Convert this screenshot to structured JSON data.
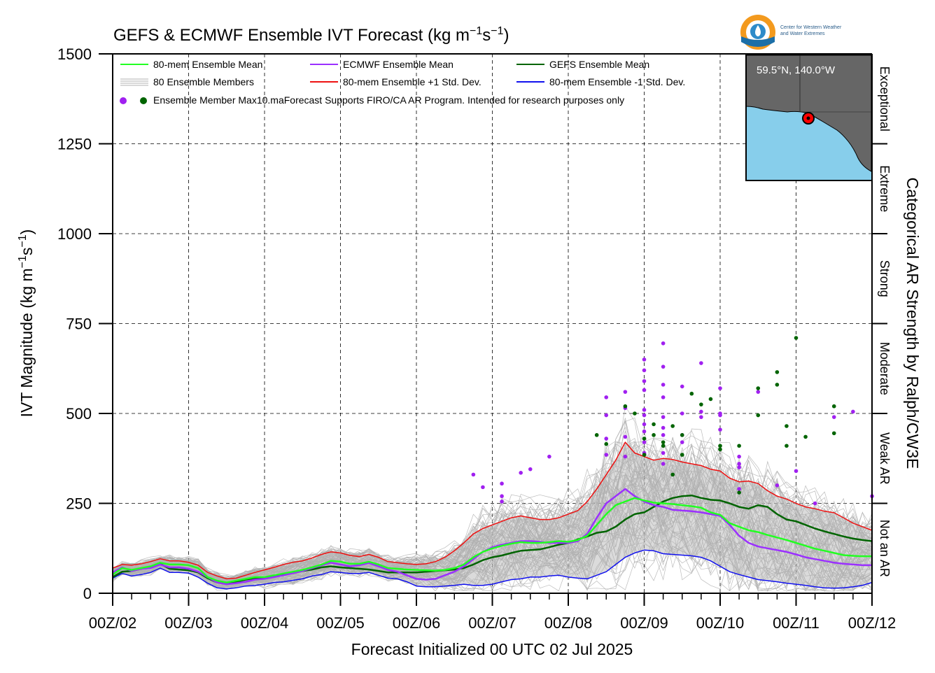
{
  "chart_data": {
    "type": "line",
    "title": "GEFS & ECMWF Ensemble IVT Forecast (kg m",
    "title_sup1": "−1",
    "title_mid": "s",
    "title_sup2": "−1",
    "title_end": ")",
    "ylabel": "IVT Magnitude (kg m",
    "ylabel_sup1": "−1",
    "ylabel_mid": "s",
    "ylabel_sup2": "−1",
    "ylabel_end": ")",
    "xlabel": "Forecast Initialized 00 UTC 02 Jul 2025",
    "right_label": "Categorical AR Strength by Ralph/CW3E",
    "ylim": [
      0,
      1500
    ],
    "xlim": [
      0,
      240
    ],
    "y_ticks": [
      0,
      250,
      500,
      750,
      1000,
      1250,
      1500
    ],
    "x_ticks": [
      {
        "value": 0,
        "label": "00Z/02"
      },
      {
        "value": 24,
        "label": "00Z/03"
      },
      {
        "value": 48,
        "label": "00Z/04"
      },
      {
        "value": 72,
        "label": "00Z/05"
      },
      {
        "value": 96,
        "label": "00Z/06"
      },
      {
        "value": 120,
        "label": "00Z/07"
      },
      {
        "value": 144,
        "label": "00Z/08"
      },
      {
        "value": 168,
        "label": "00Z/09"
      },
      {
        "value": 192,
        "label": "00Z/10"
      },
      {
        "value": 216,
        "label": "00Z/11"
      },
      {
        "value": 240,
        "label": "00Z/12"
      }
    ],
    "categories_right": [
      {
        "label": "Not an AR",
        "from": 0,
        "to": 250
      },
      {
        "label": "Weak AR",
        "from": 250,
        "to": 500
      },
      {
        "label": "Moderate",
        "from": 500,
        "to": 750
      },
      {
        "label": "Strong",
        "from": 750,
        "to": 1000
      },
      {
        "label": "Extreme",
        "from": 1000,
        "to": 1250
      },
      {
        "label": "Exceptional",
        "from": 1250,
        "to": 1500
      }
    ],
    "legend": {
      "mean80": "80-mem Ensemble Mean",
      "members": "80 Ensemble Members",
      "max": "Ensemble Member Max",
      "ecmwf_mean": "ECMWF Ensemble Mean",
      "plus1": "80-mem Ensemble +1 Std. Dev.",
      "gefs_mean": "GEFS Ensemble Mean",
      "minus1": "80-mem Ensemble -1 Std. Dev.",
      "note": "10.maForecast Supports FIRO/CA AR Program. Intended for research purposes only"
    },
    "colors": {
      "mean80": "#22ff22",
      "ecmwf_mean": "#9b30ff",
      "gefs_mean": "#006400",
      "plus1": "#ee1111",
      "minus1": "#1111ee",
      "members": "#b0b0b0",
      "spread": "#bdbdbd",
      "ecmwf_max": "#a020f0",
      "gefs_max": "#006400"
    },
    "x": [
      0,
      3,
      6,
      9,
      12,
      15,
      18,
      21,
      24,
      27,
      30,
      33,
      36,
      39,
      42,
      45,
      48,
      51,
      54,
      57,
      60,
      63,
      66,
      69,
      72,
      75,
      78,
      81,
      84,
      87,
      90,
      93,
      96,
      99,
      102,
      105,
      108,
      111,
      114,
      117,
      120,
      123,
      126,
      129,
      132,
      135,
      138,
      141,
      144,
      147,
      150,
      153,
      156,
      159,
      162,
      165,
      168,
      171,
      174,
      177,
      180,
      183,
      186,
      189,
      192,
      195,
      198,
      201,
      204,
      207,
      210,
      213,
      216,
      219,
      222,
      225,
      228,
      231,
      234,
      237,
      240
    ],
    "series": [
      {
        "name": "80-mem Ensemble Mean",
        "key": "mean80",
        "values": [
          52,
          70,
          65,
          70,
          75,
          85,
          80,
          80,
          78,
          70,
          45,
          35,
          30,
          35,
          40,
          45,
          45,
          50,
          55,
          60,
          65,
          72,
          80,
          90,
          88,
          82,
          82,
          88,
          80,
          70,
          68,
          66,
          65,
          64,
          63,
          65,
          70,
          80,
          100,
          115,
          125,
          132,
          138,
          142,
          140,
          140,
          142,
          145,
          143,
          148,
          160,
          190,
          220,
          245,
          255,
          265,
          258,
          252,
          250,
          248,
          245,
          242,
          238,
          225,
          218,
          195,
          185,
          175,
          170,
          162,
          155,
          148,
          140,
          132,
          124,
          118,
          112,
          106,
          104,
          103,
          103
        ]
      },
      {
        "name": "ECMWF Ensemble Mean",
        "key": "ecmwf_mean",
        "values": [
          58,
          72,
          62,
          68,
          70,
          80,
          72,
          72,
          68,
          60,
          45,
          30,
          25,
          28,
          32,
          38,
          40,
          45,
          50,
          56,
          62,
          70,
          78,
          85,
          80,
          75,
          78,
          84,
          75,
          65,
          60,
          50,
          40,
          38,
          40,
          50,
          60,
          75,
          95,
          115,
          128,
          135,
          140,
          145,
          145,
          143,
          140,
          140,
          140,
          145,
          165,
          210,
          250,
          270,
          290,
          270,
          255,
          245,
          240,
          232,
          230,
          228,
          225,
          220,
          215,
          190,
          160,
          140,
          130,
          125,
          120,
          115,
          108,
          100,
          95,
          90,
          85,
          82,
          80,
          78,
          78
        ]
      },
      {
        "name": "GEFS Ensemble Mean",
        "key": "gefs_mean",
        "values": [
          45,
          60,
          62,
          68,
          72,
          82,
          68,
          66,
          64,
          58,
          42,
          30,
          28,
          32,
          38,
          42,
          44,
          48,
          52,
          56,
          62,
          66,
          72,
          75,
          72,
          70,
          68,
          66,
          62,
          58,
          58,
          58,
          58,
          60,
          62,
          64,
          66,
          70,
          80,
          92,
          100,
          105,
          112,
          118,
          120,
          122,
          128,
          135,
          140,
          150,
          158,
          168,
          172,
          185,
          205,
          220,
          225,
          240,
          255,
          265,
          270,
          272,
          265,
          260,
          258,
          250,
          240,
          235,
          245,
          240,
          220,
          205,
          200,
          190,
          180,
          172,
          165,
          158,
          152,
          148,
          145
        ]
      },
      {
        "name": "80-mem Ensemble +1 Std. Dev.",
        "key": "plus1",
        "values": [
          70,
          80,
          78,
          82,
          88,
          96,
          90,
          90,
          86,
          78,
          58,
          48,
          40,
          42,
          50,
          58,
          65,
          72,
          80,
          86,
          90,
          98,
          108,
          115,
          112,
          105,
          102,
          108,
          100,
          88,
          85,
          82,
          80,
          82,
          88,
          100,
          118,
          140,
          165,
          180,
          190,
          200,
          210,
          215,
          210,
          205,
          205,
          210,
          220,
          230,
          255,
          290,
          330,
          370,
          420,
          390,
          380,
          370,
          375,
          372,
          365,
          360,
          355,
          345,
          340,
          320,
          310,
          312,
          305,
          285,
          270,
          262,
          250,
          240,
          235,
          228,
          224,
          210,
          195,
          185,
          175
        ]
      },
      {
        "name": "80-mem Ensemble -1 Std. Dev.",
        "key": "minus1",
        "values": [
          42,
          55,
          48,
          52,
          58,
          70,
          58,
          58,
          56,
          45,
          28,
          15,
          12,
          15,
          20,
          22,
          25,
          30,
          32,
          36,
          40,
          48,
          52,
          60,
          58,
          55,
          55,
          58,
          50,
          42,
          40,
          32,
          20,
          18,
          18,
          20,
          22,
          25,
          22,
          22,
          25,
          32,
          38,
          40,
          45,
          45,
          48,
          50,
          45,
          42,
          40,
          50,
          60,
          80,
          100,
          112,
          120,
          118,
          110,
          108,
          106,
          104,
          100,
          90,
          75,
          60,
          52,
          45,
          38,
          35,
          32,
          28,
          25,
          22,
          18,
          15,
          14,
          15,
          18,
          22,
          30
        ]
      }
    ],
    "ecmwf_max_points": [
      [
        114,
        330
      ],
      [
        117,
        295
      ],
      [
        123,
        305
      ],
      [
        123,
        270
      ],
      [
        123,
        255
      ],
      [
        129,
        335
      ],
      [
        132,
        345
      ],
      [
        138,
        380
      ],
      [
        156,
        385
      ],
      [
        156,
        430
      ],
      [
        156,
        495
      ],
      [
        156,
        545
      ],
      [
        162,
        380
      ],
      [
        162,
        435
      ],
      [
        162,
        515
      ],
      [
        162,
        560
      ],
      [
        168,
        510
      ],
      [
        168,
        495
      ],
      [
        168,
        470
      ],
      [
        168,
        450
      ],
      [
        168,
        420
      ],
      [
        168,
        390
      ],
      [
        168,
        565
      ],
      [
        168,
        590
      ],
      [
        168,
        620
      ],
      [
        168,
        650
      ],
      [
        174,
        360
      ],
      [
        174,
        390
      ],
      [
        174,
        440
      ],
      [
        174,
        460
      ],
      [
        174,
        490
      ],
      [
        174,
        545
      ],
      [
        174,
        580
      ],
      [
        174,
        630
      ],
      [
        174,
        695
      ],
      [
        180,
        420
      ],
      [
        180,
        440
      ],
      [
        180,
        500
      ],
      [
        180,
        575
      ],
      [
        186,
        490
      ],
      [
        186,
        505
      ],
      [
        186,
        640
      ],
      [
        192,
        455
      ],
      [
        192,
        495
      ],
      [
        192,
        500
      ],
      [
        192,
        570
      ],
      [
        198,
        380
      ],
      [
        198,
        350
      ],
      [
        198,
        290
      ],
      [
        198,
        360
      ],
      [
        204,
        560
      ],
      [
        210,
        300
      ],
      [
        216,
        340
      ],
      [
        222,
        250
      ],
      [
        228,
        490
      ],
      [
        234,
        505
      ],
      [
        240,
        270
      ]
    ],
    "gefs_max_points": [
      [
        153,
        440
      ],
      [
        156,
        415
      ],
      [
        162,
        520
      ],
      [
        165,
        500
      ],
      [
        168,
        385
      ],
      [
        168,
        430
      ],
      [
        171,
        470
      ],
      [
        171,
        440
      ],
      [
        174,
        420
      ],
      [
        174,
        410
      ],
      [
        177,
        465
      ],
      [
        177,
        330
      ],
      [
        180,
        440
      ],
      [
        180,
        385
      ],
      [
        183,
        555
      ],
      [
        186,
        525
      ],
      [
        189,
        540
      ],
      [
        192,
        410
      ],
      [
        192,
        400
      ],
      [
        198,
        410
      ],
      [
        198,
        280
      ],
      [
        204,
        570
      ],
      [
        204,
        495
      ],
      [
        210,
        615
      ],
      [
        210,
        580
      ],
      [
        213,
        465
      ],
      [
        213,
        410
      ],
      [
        216,
        710
      ],
      [
        219,
        435
      ],
      [
        228,
        520
      ],
      [
        228,
        445
      ]
    ]
  },
  "map": {
    "label": "59.5°N, 140.0°W",
    "lat": 59.5,
    "lon": -140.0
  },
  "logo": {
    "line1": "Center for Western Weather",
    "line2": "and Water Extremes"
  }
}
